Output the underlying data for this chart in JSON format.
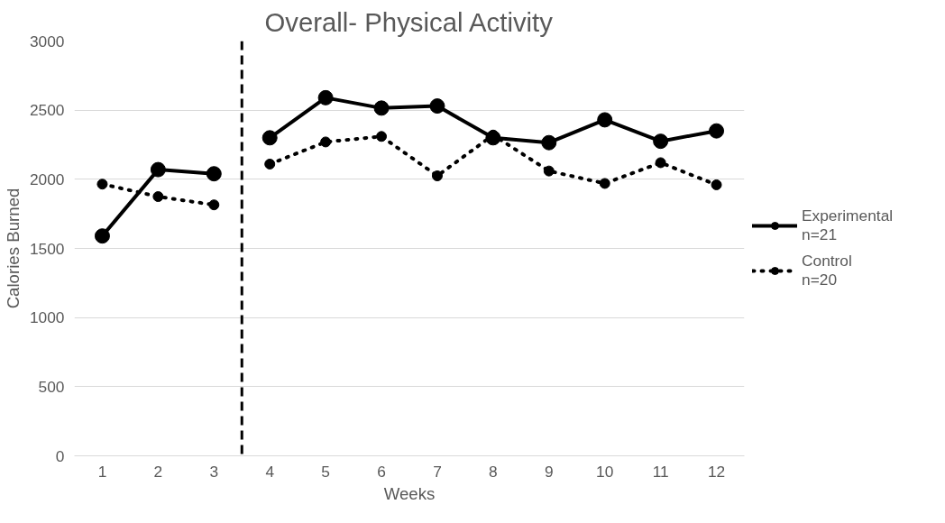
{
  "chart_data": {
    "type": "line",
    "title": "Overall- Physical Activity",
    "xlabel": "Weeks",
    "ylabel": "Calories Burned",
    "xlim": [
      0.5,
      12.5
    ],
    "xticks": [
      1,
      2,
      3,
      4,
      5,
      6,
      7,
      8,
      9,
      10,
      11,
      12
    ],
    "ylim": [
      0,
      3000
    ],
    "yticks": [
      0,
      500,
      1000,
      1500,
      2000,
      2500,
      3000
    ],
    "grid": "y",
    "legend": "right",
    "marker": "circle",
    "ref_lines": [
      {
        "axis": "x",
        "value": 3.5,
        "color": "#000000",
        "line_style": "dashed"
      }
    ],
    "series": [
      {
        "color": "#000000",
        "line_style": "solid",
        "x": [
          1,
          2,
          3
        ],
        "values": [
          1590,
          2070,
          2040
        ]
      },
      {
        "name": "Experimental\nn=21",
        "color": "#000000",
        "line_style": "solid",
        "x": [
          4,
          5,
          6,
          7,
          8,
          9,
          10,
          11,
          12
        ],
        "values": [
          2300,
          2590,
          2515,
          2530,
          2300,
          2265,
          2430,
          2275,
          2350
        ]
      },
      {
        "color": "#000000",
        "line_style": "dotted",
        "x": [
          1,
          2,
          3
        ],
        "values": [
          1965,
          1875,
          1815
        ]
      },
      {
        "name": "Control\nn=20",
        "color": "#000000",
        "line_style": "dotted",
        "x": [
          4,
          5,
          6,
          7,
          8,
          9,
          10,
          11,
          12
        ],
        "values": [
          2110,
          2270,
          2310,
          2025,
          2320,
          2060,
          1970,
          2120,
          1960
        ]
      }
    ]
  }
}
